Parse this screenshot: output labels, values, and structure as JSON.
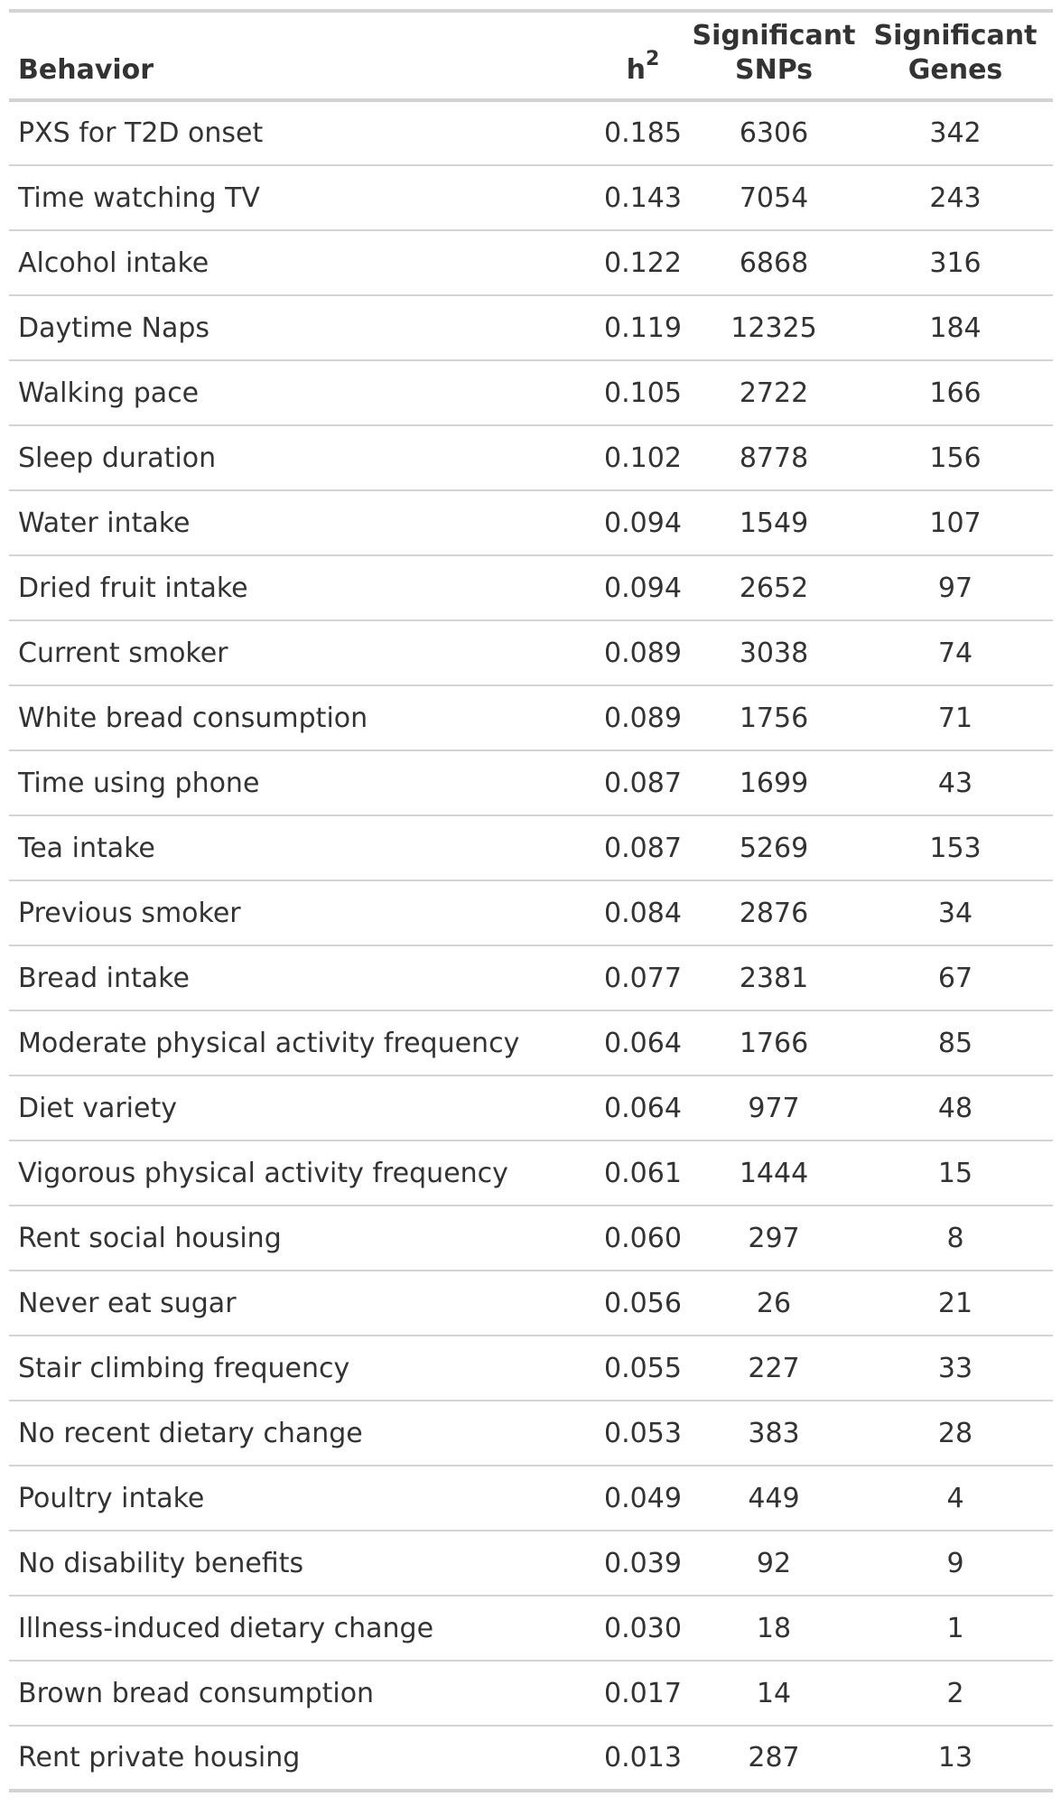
{
  "table": {
    "headers": {
      "behavior": "Behavior",
      "h2_base": "h",
      "h2_sup": "2",
      "snps_line1": "Significant",
      "snps_line2": "SNPs",
      "genes_line1": "Significant",
      "genes_line2": "Genes"
    },
    "rows": [
      {
        "behavior": "PXS for T2D onset",
        "h2": "0.185",
        "snps": "6306",
        "genes": "342"
      },
      {
        "behavior": "Time watching TV",
        "h2": "0.143",
        "snps": "7054",
        "genes": "243"
      },
      {
        "behavior": "Alcohol intake",
        "h2": "0.122",
        "snps": "6868",
        "genes": "316"
      },
      {
        "behavior": "Daytime Naps",
        "h2": "0.119",
        "snps": "12325",
        "genes": "184"
      },
      {
        "behavior": "Walking pace",
        "h2": "0.105",
        "snps": "2722",
        "genes": "166"
      },
      {
        "behavior": "Sleep duration",
        "h2": "0.102",
        "snps": "8778",
        "genes": "156"
      },
      {
        "behavior": "Water intake",
        "h2": "0.094",
        "snps": "1549",
        "genes": "107"
      },
      {
        "behavior": "Dried fruit intake",
        "h2": "0.094",
        "snps": "2652",
        "genes": "97"
      },
      {
        "behavior": "Current smoker",
        "h2": "0.089",
        "snps": "3038",
        "genes": "74"
      },
      {
        "behavior": "White bread consumption",
        "h2": "0.089",
        "snps": "1756",
        "genes": "71"
      },
      {
        "behavior": "Time using phone",
        "h2": "0.087",
        "snps": "1699",
        "genes": "43"
      },
      {
        "behavior": "Tea intake",
        "h2": "0.087",
        "snps": "5269",
        "genes": "153"
      },
      {
        "behavior": "Previous smoker",
        "h2": "0.084",
        "snps": "2876",
        "genes": "34"
      },
      {
        "behavior": "Bread intake",
        "h2": "0.077",
        "snps": "2381",
        "genes": "67"
      },
      {
        "behavior": "Moderate physical activity frequency",
        "h2": "0.064",
        "snps": "1766",
        "genes": "85"
      },
      {
        "behavior": "Diet variety",
        "h2": "0.064",
        "snps": "977",
        "genes": "48"
      },
      {
        "behavior": "Vigorous physical activity frequency",
        "h2": "0.061",
        "snps": "1444",
        "genes": "15"
      },
      {
        "behavior": "Rent social housing",
        "h2": "0.060",
        "snps": "297",
        "genes": "8"
      },
      {
        "behavior": "Never eat sugar",
        "h2": "0.056",
        "snps": "26",
        "genes": "21"
      },
      {
        "behavior": "Stair climbing frequency",
        "h2": "0.055",
        "snps": "227",
        "genes": "33"
      },
      {
        "behavior": "No recent dietary change",
        "h2": "0.053",
        "snps": "383",
        "genes": "28"
      },
      {
        "behavior": "Poultry intake",
        "h2": "0.049",
        "snps": "449",
        "genes": "4"
      },
      {
        "behavior": "No disability benefits",
        "h2": "0.039",
        "snps": "92",
        "genes": "9"
      },
      {
        "behavior": "Illness-induced dietary change",
        "h2": "0.030",
        "snps": "18",
        "genes": "1"
      },
      {
        "behavior": "Brown bread consumption",
        "h2": "0.017",
        "snps": "14",
        "genes": "2"
      },
      {
        "behavior": "Rent private housing",
        "h2": "0.013",
        "snps": "287",
        "genes": "13"
      }
    ]
  }
}
